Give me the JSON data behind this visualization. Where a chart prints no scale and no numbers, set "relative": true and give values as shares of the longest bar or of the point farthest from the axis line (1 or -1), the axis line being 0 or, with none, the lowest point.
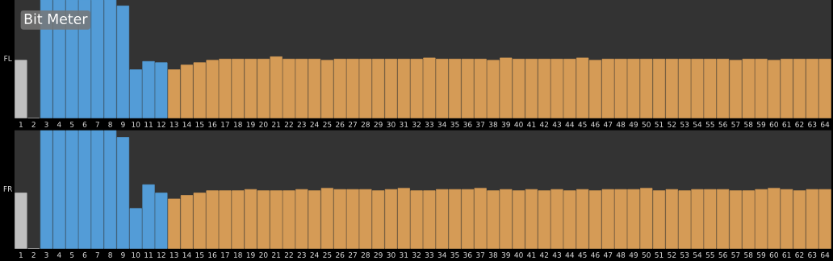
{
  "chart_data": [
    {
      "type": "bar",
      "title": "Bit Meter",
      "ylabel": "FL",
      "relative": true,
      "tick_labels": "x",
      "categories": [
        "1",
        "2",
        "3",
        "4",
        "5",
        "6",
        "7",
        "8",
        "9",
        "10",
        "11",
        "12",
        "13",
        "14",
        "15",
        "16",
        "17",
        "18",
        "19",
        "20",
        "21",
        "22",
        "23",
        "24",
        "25",
        "26",
        "27",
        "28",
        "29",
        "30",
        "31",
        "32",
        "33",
        "34",
        "35",
        "36",
        "37",
        "38",
        "39",
        "40",
        "41",
        "42",
        "43",
        "44",
        "45",
        "46",
        "47",
        "48",
        "49",
        "50",
        "51",
        "52",
        "53",
        "54",
        "55",
        "56",
        "57",
        "58",
        "59",
        "60",
        "61",
        "62",
        "63",
        "64"
      ],
      "values": [
        0.49,
        0,
        1,
        1,
        1,
        1,
        1,
        1,
        0.95,
        0.41,
        0.48,
        0.47,
        0.41,
        0.45,
        0.47,
        0.49,
        0.5,
        0.5,
        0.5,
        0.5,
        0.52,
        0.5,
        0.5,
        0.5,
        0.49,
        0.5,
        0.5,
        0.5,
        0.5,
        0.5,
        0.5,
        0.5,
        0.51,
        0.5,
        0.5,
        0.5,
        0.5,
        0.49,
        0.51,
        0.5,
        0.5,
        0.5,
        0.5,
        0.5,
        0.51,
        0.49,
        0.5,
        0.5,
        0.5,
        0.5,
        0.5,
        0.5,
        0.5,
        0.5,
        0.5,
        0.5,
        0.49,
        0.5,
        0.5,
        0.49,
        0.5,
        0.5,
        0.5,
        0.5
      ],
      "colors": [
        "#c0c0c0",
        "#c0c0c0",
        "#539cd7",
        "#539cd7",
        "#539cd7",
        "#539cd7",
        "#539cd7",
        "#539cd7",
        "#539cd7",
        "#539cd7",
        "#539cd7",
        "#539cd7",
        "#d59b56",
        "#d59b56",
        "#d59b56",
        "#d59b56",
        "#d59b56",
        "#d59b56",
        "#d59b56",
        "#d59b56",
        "#d59b56",
        "#d59b56",
        "#d59b56",
        "#d59b56",
        "#d59b56",
        "#d59b56",
        "#d59b56",
        "#d59b56",
        "#d59b56",
        "#d59b56",
        "#d59b56",
        "#d59b56",
        "#d59b56",
        "#d59b56",
        "#d59b56",
        "#d59b56",
        "#d59b56",
        "#d59b56",
        "#d59b56",
        "#d59b56",
        "#d59b56",
        "#d59b56",
        "#d59b56",
        "#d59b56",
        "#d59b56",
        "#d59b56",
        "#d59b56",
        "#d59b56",
        "#d59b56",
        "#d59b56",
        "#d59b56",
        "#d59b56",
        "#d59b56",
        "#d59b56",
        "#d59b56",
        "#d59b56",
        "#d59b56",
        "#d59b56",
        "#d59b56",
        "#d59b56",
        "#d59b56",
        "#d59b56",
        "#d59b56",
        "#d59b56"
      ]
    },
    {
      "type": "bar",
      "ylabel": "FR",
      "relative": true,
      "tick_labels": "x",
      "categories": [
        "1",
        "2",
        "3",
        "4",
        "5",
        "6",
        "7",
        "8",
        "9",
        "10",
        "11",
        "12",
        "13",
        "14",
        "15",
        "16",
        "17",
        "18",
        "19",
        "20",
        "21",
        "22",
        "23",
        "24",
        "25",
        "26",
        "27",
        "28",
        "29",
        "30",
        "31",
        "32",
        "33",
        "34",
        "35",
        "36",
        "37",
        "38",
        "39",
        "40",
        "41",
        "42",
        "43",
        "44",
        "45",
        "46",
        "47",
        "48",
        "49",
        "50",
        "51",
        "52",
        "53",
        "54",
        "55",
        "56",
        "57",
        "58",
        "59",
        "60",
        "61",
        "62",
        "63",
        "64"
      ],
      "values": [
        0.47,
        0,
        1,
        1,
        1,
        1,
        1,
        1,
        0.94,
        0.34,
        0.54,
        0.47,
        0.42,
        0.45,
        0.47,
        0.49,
        0.49,
        0.49,
        0.5,
        0.49,
        0.49,
        0.49,
        0.5,
        0.49,
        0.51,
        0.5,
        0.5,
        0.5,
        0.49,
        0.5,
        0.51,
        0.49,
        0.49,
        0.5,
        0.5,
        0.5,
        0.51,
        0.49,
        0.5,
        0.49,
        0.5,
        0.49,
        0.5,
        0.49,
        0.5,
        0.49,
        0.5,
        0.5,
        0.5,
        0.51,
        0.49,
        0.5,
        0.49,
        0.5,
        0.5,
        0.5,
        0.49,
        0.49,
        0.5,
        0.51,
        0.5,
        0.49,
        0.5,
        0.5
      ],
      "colors": [
        "#c0c0c0",
        "#c0c0c0",
        "#539cd7",
        "#539cd7",
        "#539cd7",
        "#539cd7",
        "#539cd7",
        "#539cd7",
        "#539cd7",
        "#539cd7",
        "#539cd7",
        "#539cd7",
        "#d59b56",
        "#d59b56",
        "#d59b56",
        "#d59b56",
        "#d59b56",
        "#d59b56",
        "#d59b56",
        "#d59b56",
        "#d59b56",
        "#d59b56",
        "#d59b56",
        "#d59b56",
        "#d59b56",
        "#d59b56",
        "#d59b56",
        "#d59b56",
        "#d59b56",
        "#d59b56",
        "#d59b56",
        "#d59b56",
        "#d59b56",
        "#d59b56",
        "#d59b56",
        "#d59b56",
        "#d59b56",
        "#d59b56",
        "#d59b56",
        "#d59b56",
        "#d59b56",
        "#d59b56",
        "#d59b56",
        "#d59b56",
        "#d59b56",
        "#d59b56",
        "#d59b56",
        "#d59b56",
        "#d59b56",
        "#d59b56",
        "#d59b56",
        "#d59b56",
        "#d59b56",
        "#d59b56",
        "#d59b56",
        "#d59b56",
        "#d59b56",
        "#d59b56",
        "#d59b56",
        "#d59b56",
        "#d59b56",
        "#d59b56",
        "#d59b56",
        "#d59b56"
      ]
    }
  ]
}
